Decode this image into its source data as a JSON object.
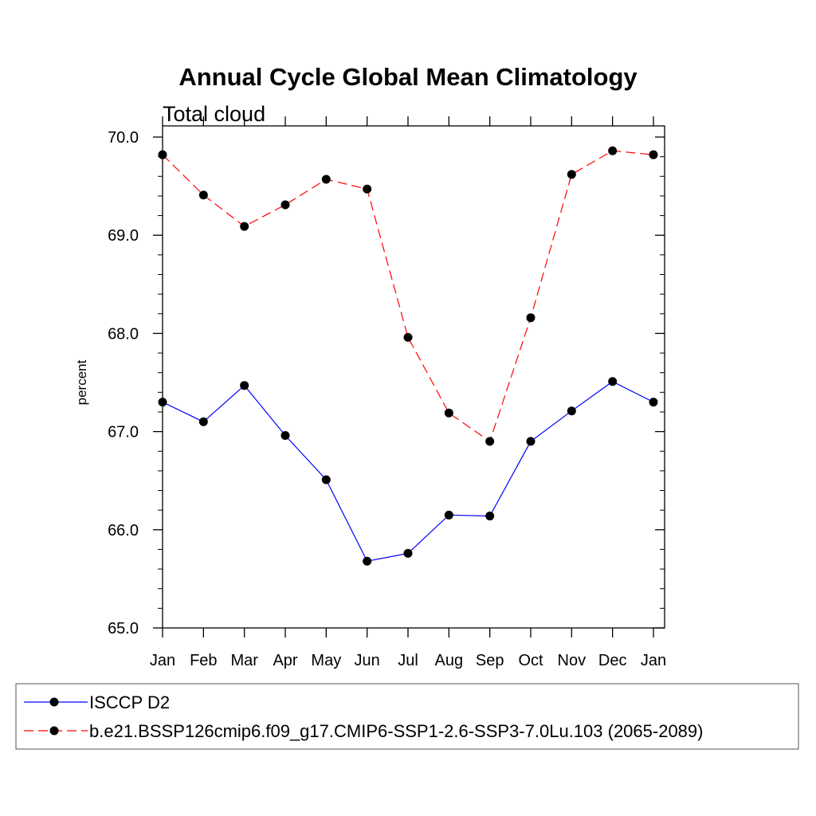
{
  "chart_data": {
    "type": "line",
    "title": "Annual Cycle Global Mean Climatology",
    "subtitle": "Total cloud",
    "xlabel": "",
    "ylabel": "percent",
    "categories": [
      "Jan",
      "Feb",
      "Mar",
      "Apr",
      "May",
      "Jun",
      "Jul",
      "Aug",
      "Sep",
      "Oct",
      "Nov",
      "Dec",
      "Jan"
    ],
    "ylim": [
      65.0,
      70.0
    ],
    "yticks": [
      "65.0",
      "66.0",
      "67.0",
      "68.0",
      "69.0",
      "70.0"
    ],
    "legend_position": "bottom",
    "series": [
      {
        "name": "ISCCP D2",
        "color": "#0000ff",
        "dash": "solid",
        "values": [
          67.3,
          67.1,
          67.47,
          66.96,
          66.51,
          65.68,
          65.76,
          66.15,
          66.14,
          66.9,
          67.21,
          67.51,
          67.3
        ]
      },
      {
        "name": "b.e21.BSSP126cmip6.f09_g17.CMIP6-SSP1-2.6-SSP3-7.0Lu.103 (2065-2089)",
        "color": "#ff0000",
        "dash": "dashed",
        "values": [
          69.82,
          69.41,
          69.09,
          69.31,
          69.57,
          69.47,
          67.96,
          67.19,
          66.9,
          68.16,
          69.62,
          69.86,
          69.82
        ]
      }
    ]
  }
}
